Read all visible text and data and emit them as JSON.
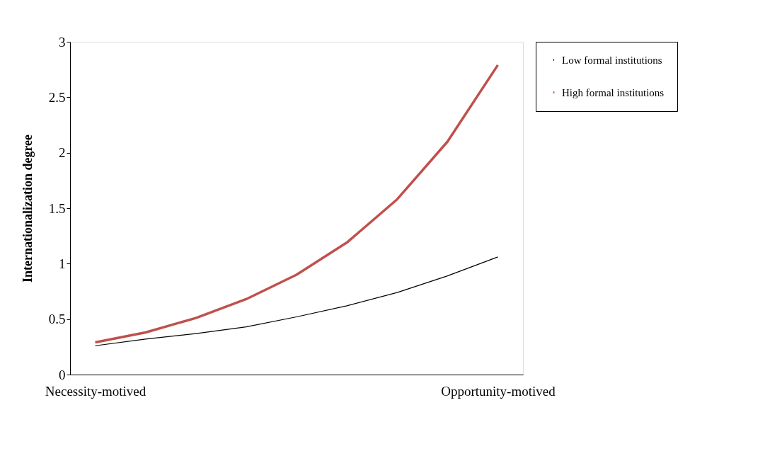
{
  "chart_data": {
    "type": "line",
    "ylabel": "Internationalization degree",
    "categories": [
      "Necessity-motived",
      null,
      null,
      null,
      null,
      null,
      null,
      null,
      "Opportunity-motived"
    ],
    "series": [
      {
        "name": "Low formal institutions",
        "color": "#000000",
        "values": [
          0.26,
          0.32,
          0.37,
          0.43,
          0.52,
          0.62,
          0.74,
          0.89,
          1.06
        ]
      },
      {
        "name": "High formal institutions",
        "color": "#c0504d",
        "values": [
          0.29,
          0.38,
          0.51,
          0.68,
          0.9,
          1.19,
          1.58,
          2.1,
          2.79
        ]
      }
    ],
    "ylim": [
      0,
      3
    ],
    "yticks": [
      0,
      0.5,
      1,
      1.5,
      2,
      2.5,
      3
    ],
    "grid": false,
    "legend": "right",
    "marker": "none",
    "line_style": "solid"
  }
}
